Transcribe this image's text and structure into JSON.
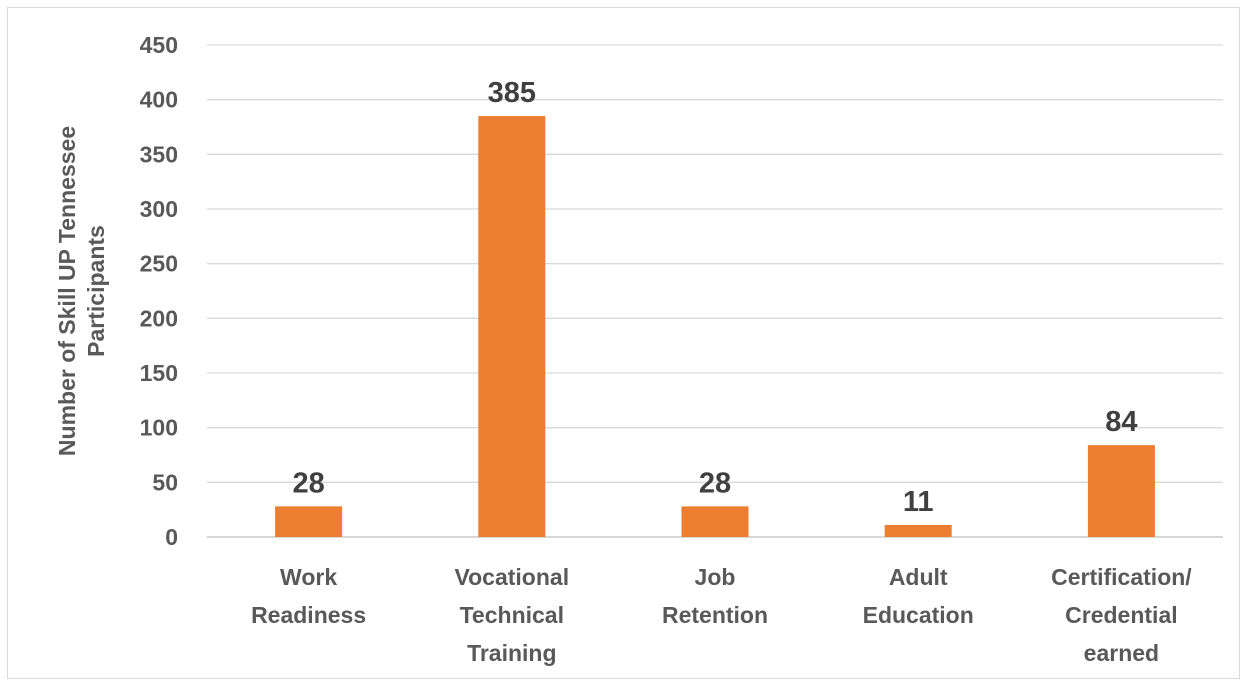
{
  "chart_data": {
    "type": "bar",
    "title": "",
    "xlabel": "",
    "ylabel_lines": [
      "Number of Skill UP Tennessee",
      "Participants"
    ],
    "ylim": [
      0,
      450
    ],
    "yticks": [
      0,
      50,
      100,
      150,
      200,
      250,
      300,
      350,
      400,
      450
    ],
    "grid": true,
    "legend": "none",
    "bar_color": "#ED7D31",
    "categories": [
      [
        "Work",
        "Readiness"
      ],
      [
        "Vocational",
        "Technical",
        "Training"
      ],
      [
        "Job",
        "Retention"
      ],
      [
        "Adult",
        "Education"
      ],
      [
        "Certification/",
        "Credential",
        "earned"
      ]
    ],
    "values": [
      28,
      385,
      28,
      11,
      84
    ],
    "data_labels": [
      "28",
      "385",
      "28",
      "11",
      "84"
    ]
  }
}
